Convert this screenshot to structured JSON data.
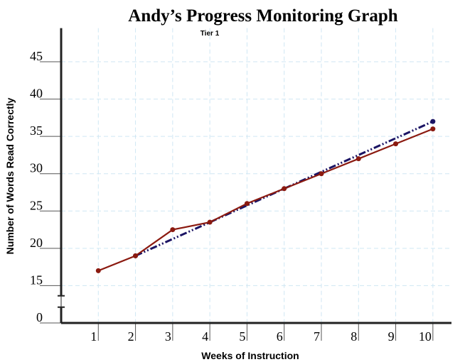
{
  "chart_data": {
    "type": "line",
    "title": "Andy’s Progress Monitoring Graph",
    "subtitle": "Tier 1",
    "x_label": "Weeks of Instruction",
    "y_label": "Number of Words Read Correctly",
    "xlim": [
      0,
      10.5
    ],
    "xticks": [
      1,
      2,
      3,
      4,
      5,
      6,
      7,
      8,
      9,
      10
    ],
    "ylim": [
      0,
      49.5
    ],
    "yticks": [
      0,
      15,
      20,
      25,
      30,
      35,
      40,
      45
    ],
    "axis_break": true,
    "grid": true,
    "series": [
      {
        "color": "#1b1464",
        "style": "dash-dot",
        "x": [
          2,
          10
        ],
        "values": [
          19,
          37
        ]
      },
      {
        "color": "#8b1a10",
        "style": "solid",
        "x": [
          1,
          2,
          3,
          4,
          5,
          6,
          7,
          8,
          9,
          10
        ],
        "values": [
          17,
          19,
          22.5,
          23.5,
          26,
          28,
          30,
          32,
          34,
          36
        ]
      }
    ]
  }
}
